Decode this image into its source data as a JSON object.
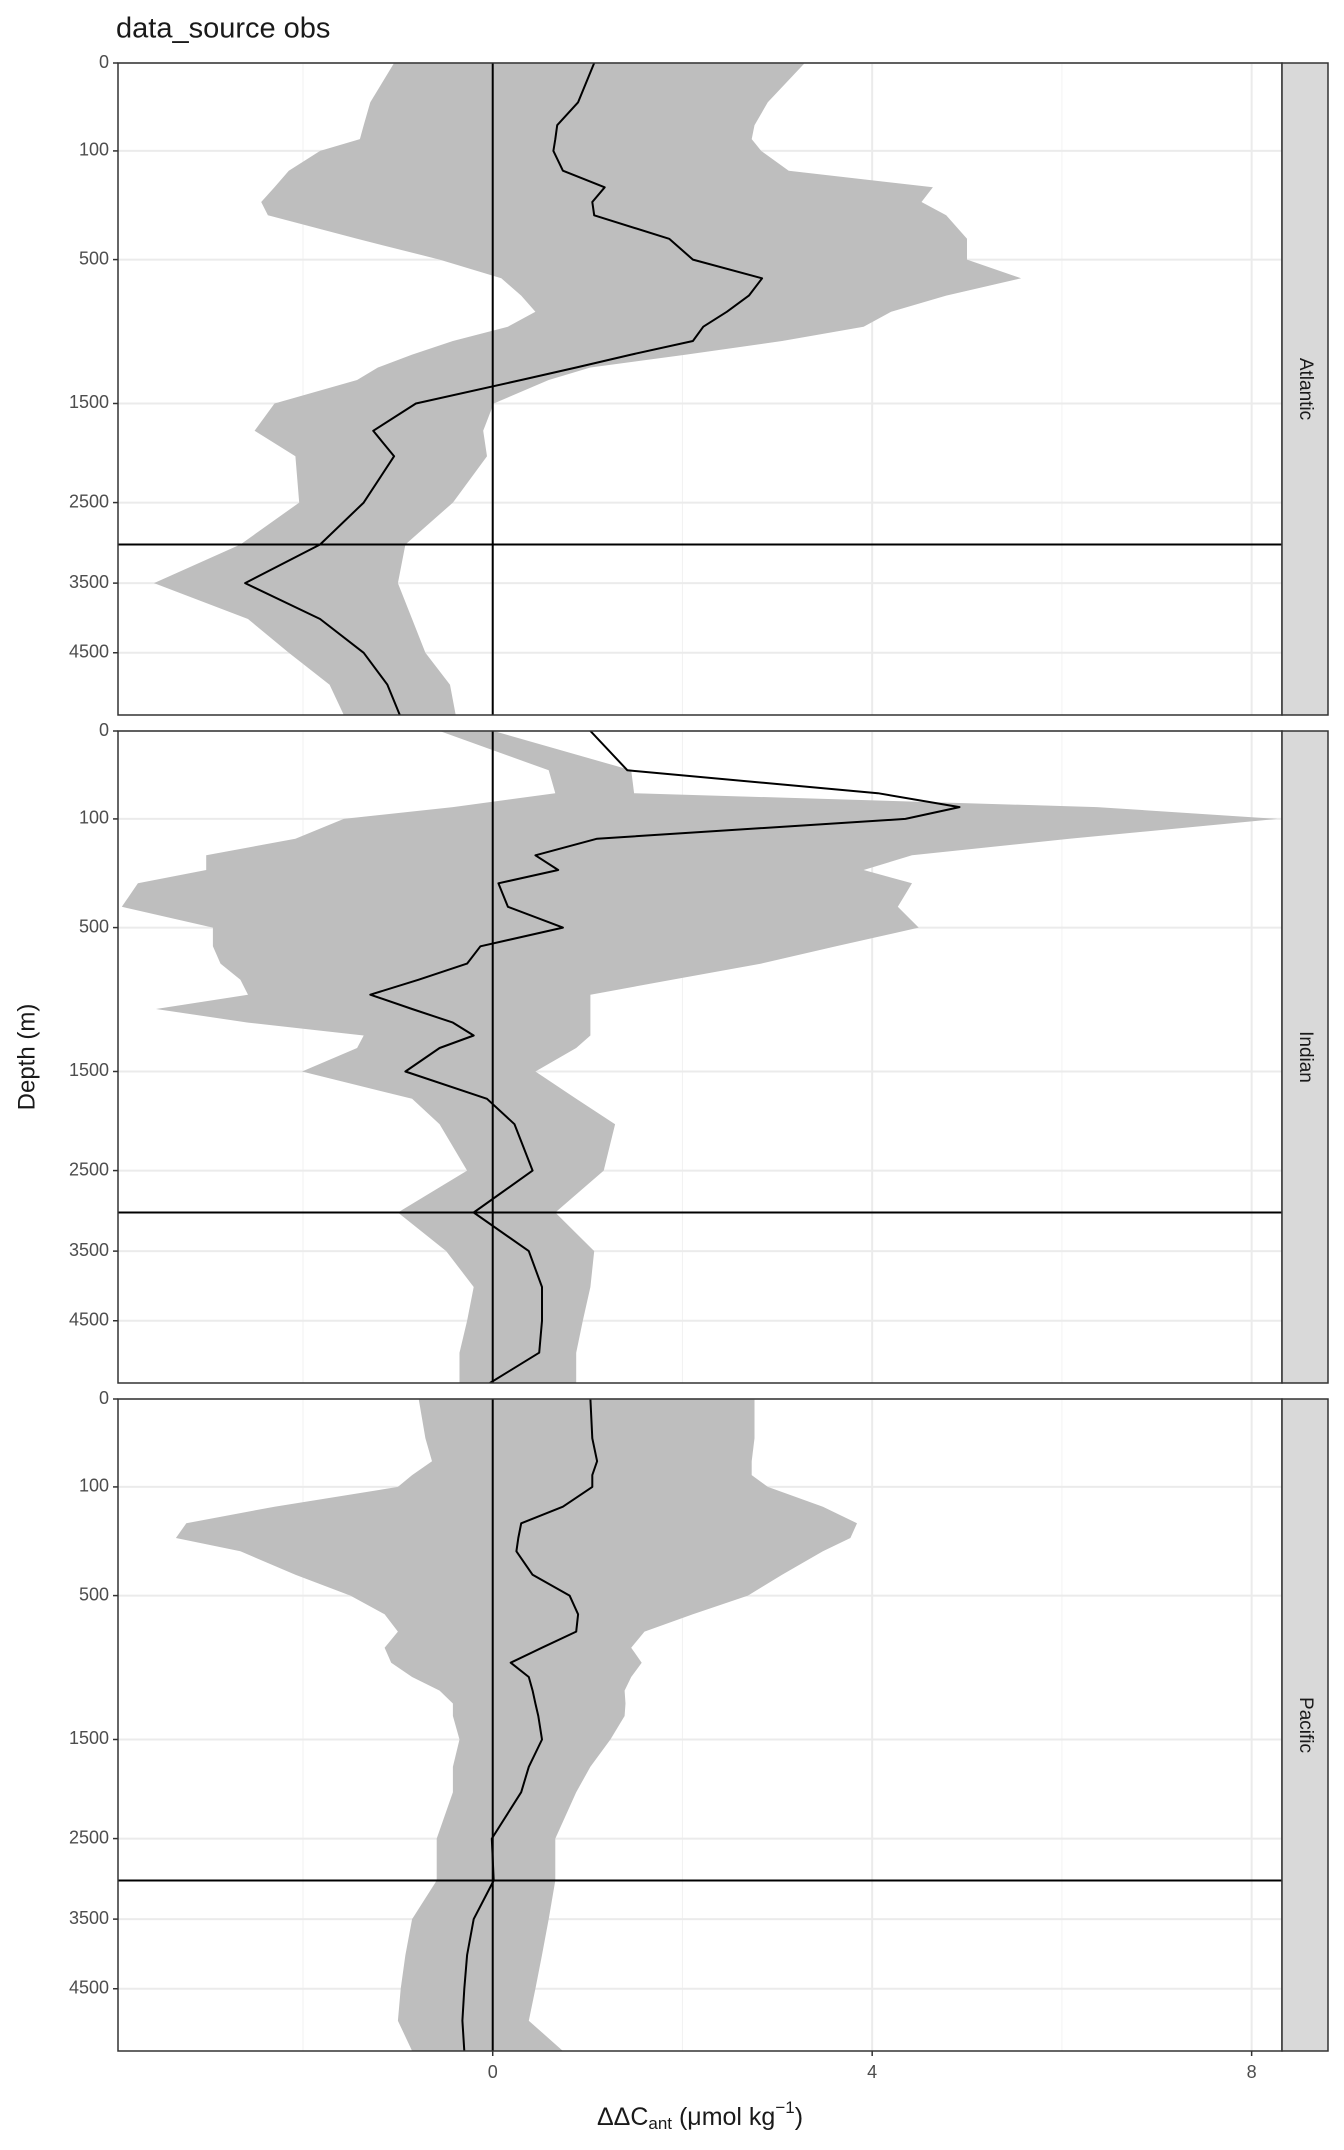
{
  "chart_data": {
    "type": "line",
    "title": "data_source obs",
    "y_label": "Depth (m)",
    "x_label": {
      "main": "ΔΔC",
      "sub": "ant",
      "unit": " (μmol kg",
      "sup": "−1",
      "close": ")"
    },
    "xlim": [
      -3.95,
      8.32
    ],
    "xticks": [
      0,
      4,
      8
    ],
    "xminor": [
      -2,
      2,
      6
    ],
    "ylim": [
      0,
      5500
    ],
    "yticks": [
      0,
      100,
      500,
      1500,
      2500,
      3500,
      4500
    ],
    "y_transform": "sqrt",
    "y_reversed": true,
    "grid": true,
    "hline": 3000,
    "vline": 0,
    "line_color": "#000000",
    "ribbon_color": "#bebebe",
    "depth": [
      0,
      20,
      50,
      75,
      100,
      150,
      200,
      250,
      300,
      400,
      500,
      600,
      700,
      800,
      900,
      1000,
      1100,
      1200,
      1300,
      1500,
      1750,
      2000,
      2500,
      3000,
      3500,
      4000,
      4500,
      5000,
      5500
    ],
    "facets": [
      {
        "name": "Atlantic",
        "values": [
          1.07,
          0.9,
          0.68,
          0.66,
          0.64,
          0.74,
          1.18,
          1.05,
          1.07,
          1.86,
          2.11,
          2.84,
          2.7,
          2.47,
          2.22,
          2.11,
          1.46,
          0.88,
          0.3,
          -0.81,
          -1.26,
          -1.04,
          -1.36,
          -1.82,
          -2.61,
          -1.82,
          -1.36,
          -1.11,
          -0.98
        ],
        "lower": [
          -1.04,
          -1.29,
          -1.36,
          -1.4,
          -1.82,
          -2.15,
          -2.3,
          -2.44,
          -2.37,
          -1.43,
          -0.56,
          0.09,
          0.3,
          0.45,
          0.16,
          -0.42,
          -0.85,
          -1.21,
          -1.43,
          -2.3,
          -2.51,
          -2.08,
          -2.04,
          -2.66,
          -3.57,
          -2.58,
          -2.15,
          -1.72,
          -1.57
        ],
        "upper": [
          3.29,
          2.9,
          2.76,
          2.73,
          2.83,
          3.12,
          4.64,
          4.52,
          4.78,
          5.0,
          5.0,
          5.57,
          4.78,
          4.2,
          3.91,
          3.05,
          2.04,
          1.03,
          0.59,
          0.01,
          -0.1,
          -0.06,
          -0.42,
          -0.92,
          -1.0,
          -0.85,
          -0.71,
          -0.45,
          -0.39
        ]
      },
      {
        "name": "Indian",
        "values": [
          1.03,
          1.42,
          4.06,
          4.92,
          4.35,
          1.1,
          0.45,
          0.69,
          0.06,
          0.16,
          0.74,
          -0.13,
          -0.27,
          -0.78,
          -1.29,
          -0.85,
          -0.42,
          -0.2,
          -0.56,
          -0.92,
          -0.06,
          0.23,
          0.42,
          -0.2,
          0.38,
          0.52,
          0.52,
          0.49,
          -0.03
        ],
        "lower": [
          -0.56,
          0.59,
          0.66,
          -0.42,
          -1.57,
          -2.08,
          -3.02,
          -3.02,
          -3.74,
          -3.91,
          -2.95,
          -2.95,
          -2.87,
          -2.66,
          -2.58,
          -3.55,
          -2.58,
          -1.36,
          -1.43,
          -2.01,
          -0.85,
          -0.56,
          -0.27,
          -1.0,
          -0.49,
          -0.2,
          -0.27,
          -0.35,
          -0.35
        ],
        "upper": [
          0.01,
          1.46,
          1.49,
          6.37,
          8.27,
          6.08,
          4.42,
          3.91,
          4.42,
          4.27,
          4.49,
          3.62,
          2.83,
          1.89,
          1.03,
          1.03,
          1.03,
          1.03,
          0.88,
          0.45,
          0.88,
          1.29,
          1.17,
          0.66,
          1.07,
          1.03,
          0.95,
          0.88,
          0.88
        ]
      },
      {
        "name": "Pacific",
        "values": [
          1.03,
          1.05,
          1.1,
          1.05,
          1.05,
          0.74,
          0.3,
          0.27,
          0.25,
          0.42,
          0.81,
          0.9,
          0.88,
          0.52,
          0.19,
          0.38,
          0.42,
          0.45,
          0.48,
          0.52,
          0.38,
          0.3,
          -0.01,
          0.01,
          -0.2,
          -0.27,
          -0.3,
          -0.32,
          -0.3
        ],
        "lower": [
          -0.78,
          -0.71,
          -0.64,
          -0.85,
          -1.0,
          -2.3,
          -3.23,
          -3.34,
          -2.66,
          -2.08,
          -1.5,
          -1.14,
          -1.0,
          -1.14,
          -1.07,
          -0.85,
          -0.56,
          -0.42,
          -0.42,
          -0.35,
          -0.42,
          -0.42,
          -0.59,
          -0.59,
          -0.85,
          -0.92,
          -0.97,
          -1.0,
          -0.85
        ],
        "upper": [
          2.76,
          2.76,
          2.73,
          2.73,
          2.9,
          3.48,
          3.84,
          3.77,
          3.48,
          3.05,
          2.69,
          2.11,
          1.6,
          1.46,
          1.57,
          1.46,
          1.39,
          1.4,
          1.39,
          1.24,
          1.03,
          0.88,
          0.66,
          0.66,
          0.59,
          0.52,
          0.45,
          0.38,
          0.74
        ]
      }
    ]
  }
}
